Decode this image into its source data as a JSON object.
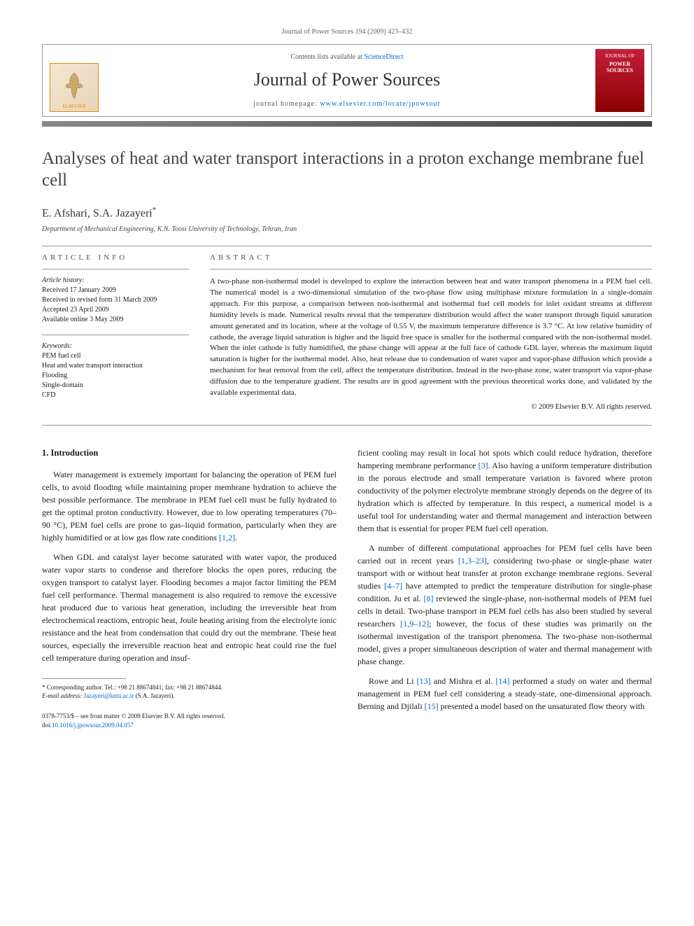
{
  "running_header": "Journal of Power Sources 194 (2009) 423–432",
  "masthead": {
    "contents_prefix": "Contents lists available at ",
    "contents_link": "ScienceDirect",
    "journal_name": "Journal of Power Sources",
    "homepage_prefix": "journal homepage: ",
    "homepage_url": "www.elsevier.com/locate/jpowsour",
    "publisher_label": "ELSEVIER",
    "cover_label_small": "JOURNAL OF",
    "cover_label_big": "POWER SOURCES"
  },
  "article": {
    "title": "Analyses of heat and water transport interactions in a proton exchange membrane fuel cell",
    "authors": "E. Afshari, S.A. Jazayeri",
    "corr_mark": "*",
    "affiliation": "Department of Mechanical Engineering, K.N. Toosi University of Technology, Tehran, Iran"
  },
  "info": {
    "heading": "article info",
    "history_label": "Article history:",
    "history": [
      "Received 17 January 2009",
      "Received in revised form 31 March 2009",
      "Accepted 23 April 2009",
      "Available online 3 May 2009"
    ],
    "keywords_label": "Keywords:",
    "keywords": [
      "PEM fuel cell",
      "Heat and water transport interaction",
      "Flooding",
      "Single-domain",
      "CFD"
    ]
  },
  "abstract": {
    "heading": "abstract",
    "text": "A two-phase non-isothermal model is developed to explore the interaction between heat and water transport phenomena in a PEM fuel cell. The numerical model is a two-dimensional simulation of the two-phase flow using multiphase mixture formulation in a single-domain approach. For this purpose, a comparison between non-isothermal and isothermal fuel cell models for inlet oxidant streams at different humidity levels is made. Numerical results reveal that the temperature distribution would affect the water transport through liquid saturation amount generated and its location, where at the voltage of 0.55 V, the maximum temperature difference is 3.7 °C. At low relative humidity of cathode, the average liquid saturation is higher and the liquid free space is smaller for the isothermal compared with the non-isothermal model. When the inlet cathode is fully humidified, the phase change will appear at the full face of cathode GDL layer, whereas the maximum liquid saturation is higher for the isothermal model. Also, heat release due to condensation of water vapor and vapor-phase diffusion which provide a mechanism for heat removal from the cell, affect the temperature distribution. Instead in the two-phase zone, water transport via vapor-phase diffusion due to the temperature gradient. The results are in good agreement with the previous theoretical works done, and validated by the available experimental data.",
    "copyright": "© 2009 Elsevier B.V. All rights reserved."
  },
  "body": {
    "section_heading": "1. Introduction",
    "left_paragraphs": [
      "Water management is extremely important for balancing the operation of PEM fuel cells, to avoid flooding while maintaining proper membrane hydration to achieve the best possible performance. The membrane in PEM fuel cell must be fully hydrated to get the optimal proton conductivity. However, due to low operating temperatures (70–90 °C), PEM fuel cells are prone to gas–liquid formation, particularly when they are highly humidified or at low gas flow rate conditions [1,2].",
      "When GDL and catalyst layer become saturated with water vapor, the produced water vapor starts to condense and therefore blocks the open pores, reducing the oxygen transport to catalyst layer. Flooding becomes a major factor limiting the PEM fuel cell performance. Thermal management is also required to remove the excessive heat produced due to various heat generation, including the irreversible heat from electrochemical reactions, entropic heat, Joule heating arising from the electrolyte ionic resistance and the heat from condensation that could dry out the membrane. These heat sources, especially the irreversible reaction heat and entropic heat could rise the fuel cell temperature during operation and insuf-"
    ],
    "right_paragraphs": [
      "ficient cooling may result in local hot spots which could reduce hydration, therefore hampering membrane performance [3]. Also having a uniform temperature distribution in the porous electrode and small temperature variation is favored where proton conductivity of the polymer electrolyte membrane strongly depends on the degree of its hydration which is affected by temperature. In this respect, a numerical model is a useful tool for understanding water and thermal management and interaction between them that is essential for proper PEM fuel cell operation.",
      "A number of different computational approaches for PEM fuel cells have been carried out in recent years [1,3–23], considering two-phase or single-phase water transport with or without heat transfer at proton exchange membrane regions. Several studies [4–7] have attempted to predict the temperature distribution for single-phase condition. Ju et al. [8] reviewed the single-phase, non-isothermal models of PEM fuel cells in detail. Two-phase transport in PEM fuel cells has also been studied by several researchers [1,9–12]; however, the focus of these studies was primarily on the isothermal investigation of the transport phenomena. The two-phase non-isothermal model, gives a proper simultaneous description of water and thermal management with phase change.",
      "Rowe and Li [13] and Mishra et al. [14] performed a study on water and thermal management in PEM fuel cell considering a steady-state, one-dimensional approach. Berning and Djilali [15] presented a model based on the unsaturated flow theory with"
    ]
  },
  "footnote": {
    "corr_text": "* Corresponding author. Tel.: +98 21 88674841; fax: +98 21 88674844.",
    "email_label": "E-mail address: ",
    "email": "Jazayeri@kntu.ac.ir",
    "email_suffix": " (S.A. Jazayeri)."
  },
  "footer": {
    "left": "0378-7753/$ – see front matter © 2009 Elsevier B.V. All rights reserved.",
    "doi_label": "doi:",
    "doi": "10.1016/j.jpowsour.2009.04.057"
  },
  "colors": {
    "link": "#0066cc",
    "rule": "#999999",
    "elsevier_orange": "#e68a00",
    "cover_red_top": "#c41e3a",
    "cover_red_bottom": "#8b0000"
  }
}
